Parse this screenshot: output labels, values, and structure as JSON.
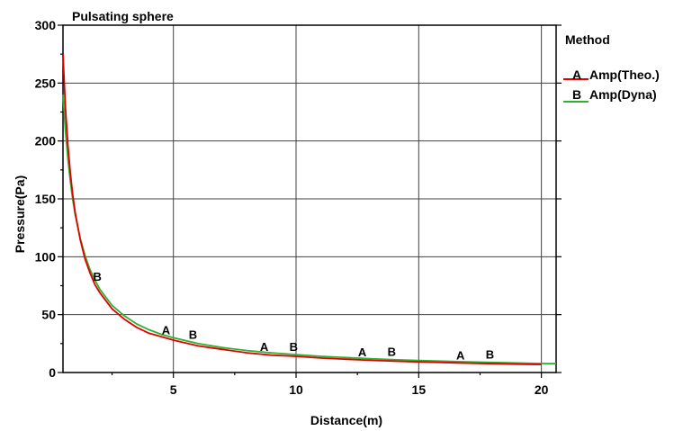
{
  "chart_data": {
    "type": "line",
    "title": "Pulsating sphere",
    "xlabel": "Distance(m)",
    "ylabel": "Pressure(Pa)",
    "xlim": [
      0.5,
      20.6
    ],
    "ylim": [
      0,
      300
    ],
    "x_ticks": [
      5,
      10,
      15,
      20
    ],
    "y_ticks": [
      0,
      50,
      100,
      150,
      200,
      250,
      300
    ],
    "grid": true,
    "legend": {
      "title": "Method",
      "placement": "right"
    },
    "series": [
      {
        "name": "Amp(Theo.)",
        "marker": "A",
        "color": "#e00000",
        "x": [
          0.5,
          0.6,
          0.7,
          0.8,
          0.9,
          1.0,
          1.2,
          1.4,
          1.6,
          1.8,
          2.0,
          2.5,
          3.0,
          3.5,
          4.0,
          4.5,
          5.0,
          6.0,
          7.0,
          8.0,
          9.0,
          10.0,
          11.0,
          12.0,
          13.0,
          14.0,
          15.0,
          16.0,
          17.0,
          18.0,
          19.0,
          20.0
        ],
        "values": [
          275,
          229,
          196,
          172,
          153,
          138,
          115,
          98,
          86,
          76,
          69,
          55,
          46,
          39,
          34,
          31,
          28,
          23,
          20,
          17,
          15,
          14,
          12.5,
          11.5,
          10.6,
          9.8,
          9.2,
          8.6,
          8.1,
          7.6,
          7.2,
          6.9
        ],
        "marker_x": [
          4.7,
          8.7,
          12.7,
          16.7
        ]
      },
      {
        "name": "Amp(Dyna)",
        "marker": "B",
        "color": "#30b030",
        "x": [
          0.5,
          0.6,
          0.7,
          0.8,
          0.9,
          1.0,
          1.2,
          1.4,
          1.6,
          1.8,
          2.0,
          2.5,
          3.0,
          3.5,
          4.0,
          4.5,
          5.0,
          6.0,
          7.0,
          8.0,
          9.0,
          10.0,
          11.0,
          12.0,
          13.0,
          14.0,
          15.0,
          16.0,
          17.0,
          18.0,
          19.0,
          20.0,
          20.6
        ],
        "values": [
          240,
          209,
          184,
          165,
          149,
          136,
          116,
          101,
          89,
          80,
          72,
          58,
          49,
          42,
          37,
          33,
          30,
          25,
          21.5,
          19,
          17,
          15.5,
          14,
          13,
          12,
          11,
          10.4,
          9.8,
          9.2,
          8.7,
          8.2,
          7.8,
          7.6
        ],
        "marker_x": [
          1.9,
          5.8,
          9.9,
          13.9,
          17.9
        ]
      }
    ]
  }
}
